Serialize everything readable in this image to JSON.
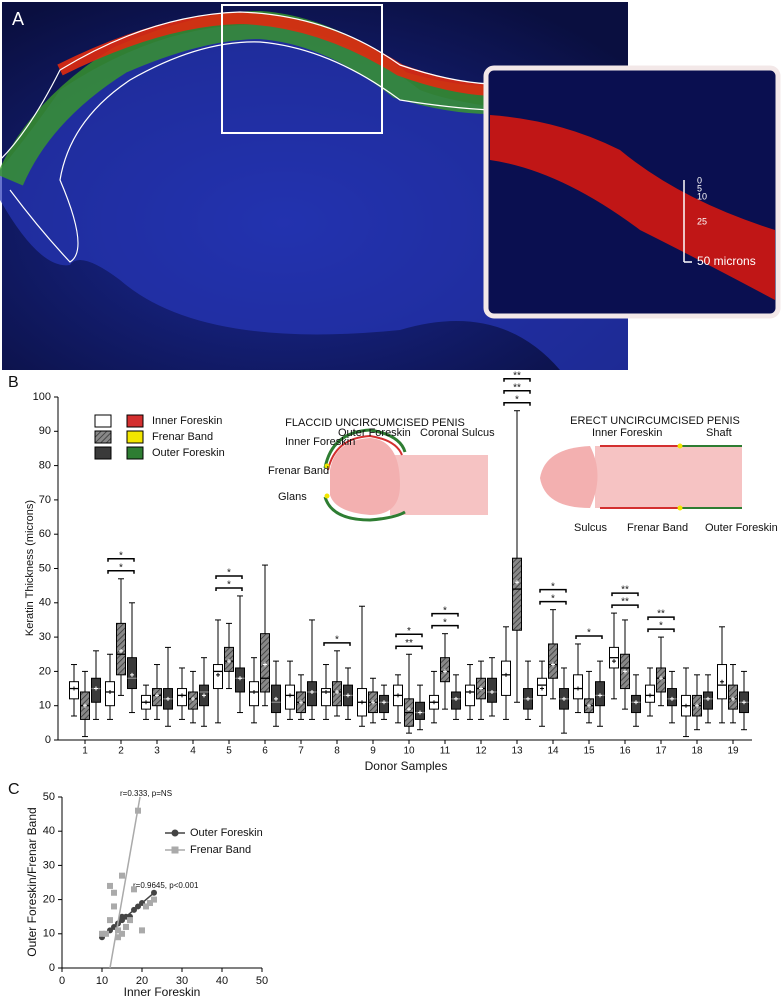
{
  "panel_a": {
    "label": "A",
    "scale_labels": [
      "0",
      "5",
      "10",
      "25",
      "50 microns"
    ]
  },
  "chart_data": [
    {
      "type": "box",
      "panel_label": "B",
      "y_label": "Keratin Thickness (microns)",
      "x_label": "Donor Samples",
      "categories": [
        "1",
        "2",
        "3",
        "4",
        "5",
        "6",
        "7",
        "8",
        "9",
        "10",
        "11",
        "12",
        "13",
        "14",
        "15",
        "16",
        "17",
        "18",
        "19"
      ],
      "ylim": [
        0,
        100
      ],
      "yticks": [
        0,
        10,
        20,
        30,
        40,
        50,
        60,
        70,
        80,
        90,
        100
      ],
      "series": [
        {
          "name": "Inner Foreskin",
          "color": "#ffffff",
          "legend_color": "#d32f2f",
          "boxes": [
            [
              7,
              12,
              15,
              17,
              22
            ],
            [
              6,
              10,
              14,
              17,
              25
            ],
            [
              6,
              9,
              11,
              13,
              16
            ],
            [
              6,
              10,
              13,
              15,
              21
            ],
            [
              5,
              15,
              20,
              22,
              35
            ],
            [
              5,
              10,
              14,
              17,
              24
            ],
            [
              6,
              9,
              13,
              16,
              23
            ],
            [
              6,
              10,
              14,
              15,
              22
            ],
            [
              4,
              7,
              11,
              15,
              39
            ],
            [
              5,
              10,
              13,
              16,
              19
            ],
            [
              5,
              9,
              11,
              13,
              20
            ],
            [
              6,
              10,
              14,
              16,
              22
            ],
            [
              6,
              13,
              19,
              23,
              33
            ],
            [
              4,
              13,
              16,
              18,
              23
            ],
            [
              8,
              12,
              15,
              19,
              28
            ],
            [
              12,
              21,
              24,
              27,
              37
            ],
            [
              7,
              11,
              13,
              16,
              21
            ],
            [
              1,
              7,
              10,
              13,
              21
            ],
            [
              5,
              12,
              16,
              22,
              33
            ]
          ],
          "means": [
            15,
            14,
            11,
            13,
            19,
            14,
            13,
            14,
            11,
            13,
            11,
            14,
            19,
            15,
            15,
            23,
            13,
            10,
            17
          ]
        },
        {
          "name": "Frenar Band",
          "color": "hatch",
          "legend_color": "#f2e600",
          "boxes": [
            [
              1,
              6,
              10,
              14,
              20
            ],
            [
              13,
              19,
              25,
              34,
              47
            ],
            [
              6,
              10,
              13,
              15,
              22
            ],
            [
              5,
              9,
              12,
              14,
              20
            ],
            [
              15,
              20,
              23,
              27,
              34
            ],
            [
              10,
              14,
              18,
              31,
              51
            ],
            [
              6,
              8,
              11,
              14,
              19
            ],
            [
              7,
              10,
              14,
              17,
              26
            ],
            [
              5,
              8,
              11,
              14,
              18
            ],
            [
              2,
              4,
              8,
              12,
              25
            ],
            [
              9,
              17,
              20,
              24,
              31
            ],
            [
              6,
              12,
              15,
              18,
              23
            ],
            [
              11,
              32,
              44,
              53,
              96
            ],
            [
              12,
              18,
              22,
              28,
              38
            ],
            [
              5,
              8,
              10,
              12,
              20
            ],
            [
              9,
              15,
              21,
              25,
              35
            ],
            [
              10,
              14,
              18,
              21,
              30
            ],
            [
              3,
              7,
              10,
              13,
              19
            ],
            [
              5,
              9,
              12,
              16,
              22
            ]
          ],
          "means": [
            10,
            26,
            13,
            12,
            23,
            22,
            11,
            14,
            11,
            9,
            20,
            15,
            46,
            22,
            10,
            20,
            18,
            10,
            12
          ]
        },
        {
          "name": "Outer Foreskin",
          "color": "#3a3a3a",
          "legend_color": "#2e7d32",
          "boxes": [
            [
              6,
              11,
              15,
              18,
              26
            ],
            [
              8,
              15,
              18,
              24,
              40
            ],
            [
              4,
              9,
              12,
              15,
              27
            ],
            [
              4,
              10,
              14,
              16,
              24
            ],
            [
              8,
              14,
              18,
              21,
              42
            ],
            [
              4,
              8,
              11,
              16,
              23
            ],
            [
              6,
              10,
              14,
              17,
              35
            ],
            [
              6,
              10,
              13,
              16,
              21
            ],
            [
              6,
              8,
              11,
              13,
              16
            ],
            [
              3,
              6,
              8,
              11,
              16
            ],
            [
              6,
              9,
              12,
              14,
              19
            ],
            [
              7,
              11,
              14,
              18,
              24
            ],
            [
              6,
              9,
              12,
              15,
              23
            ],
            [
              2,
              9,
              12,
              15,
              21
            ],
            [
              4,
              10,
              13,
              17,
              23
            ],
            [
              4,
              8,
              11,
              13,
              19
            ],
            [
              5,
              10,
              12,
              15,
              20
            ],
            [
              5,
              9,
              12,
              14,
              19
            ],
            [
              3,
              8,
              11,
              14,
              20
            ]
          ],
          "means": [
            15,
            19,
            12,
            13,
            18,
            12,
            14,
            13,
            11,
            8,
            12,
            14,
            12,
            12,
            13,
            11,
            12,
            12,
            11
          ]
        }
      ],
      "significance": [
        null,
        [
          "*",
          "*"
        ],
        null,
        null,
        [
          "*",
          "*"
        ],
        null,
        null,
        [
          "*"
        ],
        null,
        [
          "**",
          "*"
        ],
        [
          "*",
          "*"
        ],
        null,
        [
          "*",
          "**",
          "**"
        ],
        [
          "*",
          "*"
        ],
        [
          "*"
        ],
        [
          "**",
          "**"
        ],
        [
          "*",
          "**"
        ],
        null,
        null
      ],
      "diagrams": [
        {
          "title": "FLACCID UNCIRCUMCISED PENIS",
          "labels": [
            "Outer Foreskin",
            "Inner Foreskin",
            "Coronal Sulcus",
            "Frenar Band",
            "Glans"
          ]
        },
        {
          "title": "ERECT UNCIRCUMCISED PENIS",
          "labels": [
            "Inner Foreskin",
            "Shaft",
            "Sulcus",
            "Frenar Band",
            "Outer Foreskin"
          ]
        }
      ]
    },
    {
      "type": "scatter",
      "panel_label": "C",
      "x_label": "Inner Foreskin",
      "y_label": "Outer Foreskin/Frenar Band",
      "xlim": [
        0,
        50
      ],
      "xticks": [
        0,
        10,
        20,
        30,
        40,
        50
      ],
      "ylim": [
        0,
        50
      ],
      "yticks": [
        0,
        10,
        20,
        30,
        40,
        50
      ],
      "series": [
        {
          "name": "Outer Foreskin",
          "color": "#444444",
          "marker": "circle",
          "x": [
            10,
            12,
            13,
            14,
            15,
            15,
            16,
            17,
            18,
            19,
            20,
            23
          ],
          "y": [
            9,
            11,
            12,
            13,
            14,
            15,
            15,
            15,
            17,
            18,
            19,
            22
          ],
          "trend": {
            "x": [
              10,
              23
            ],
            "y": [
              9,
              22
            ]
          },
          "annotation": "r=0.9645, p<0.001"
        },
        {
          "name": "Frenar Band",
          "color": "#aaaaaa",
          "marker": "square",
          "x": [
            10,
            11,
            12,
            12,
            13,
            13,
            14,
            14,
            15,
            15,
            16,
            17,
            18,
            19,
            20,
            21,
            22,
            23
          ],
          "y": [
            10,
            10,
            14,
            24,
            18,
            22,
            9,
            11,
            10,
            27,
            12,
            14,
            23,
            46,
            11,
            18,
            19,
            20
          ],
          "trend": {
            "x": [
              12,
              19.5
            ],
            "y": [
              0,
              50
            ]
          },
          "annotation": "r=0.333, p=NS"
        }
      ]
    }
  ]
}
